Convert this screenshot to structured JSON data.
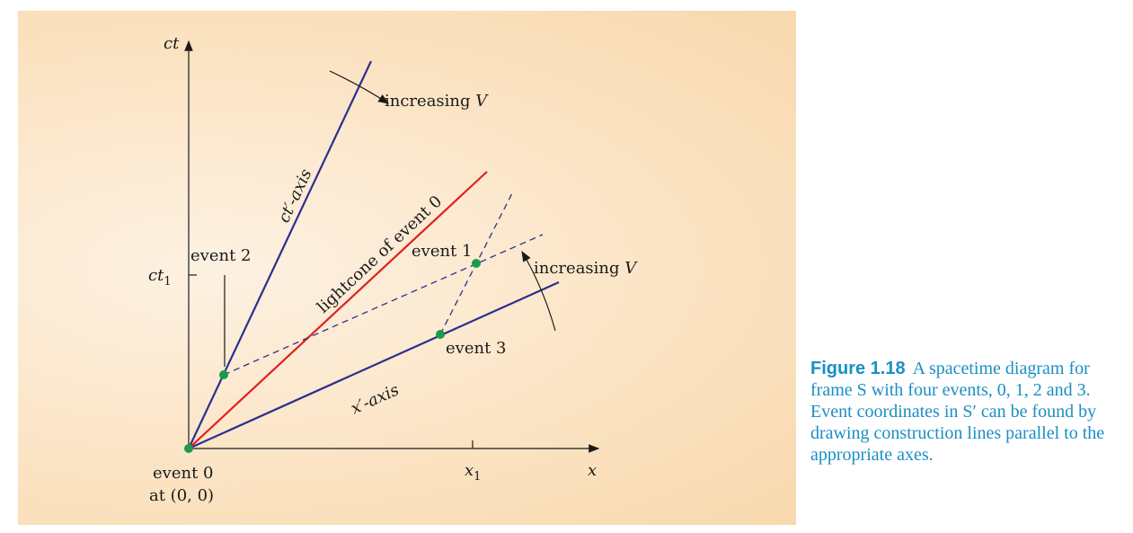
{
  "diagram": {
    "axis_ct": "ct",
    "axis_x": "x",
    "tick_ct1": "ct",
    "tick_ct1_sub": "1",
    "tick_x1": "x",
    "tick_x1_sub": "1",
    "ct_prime_axis_label": "ct′-axis",
    "x_prime_axis_label": "x′-axis",
    "lightcone_label": "lightcone of event 0",
    "increasing_v_text": "increasing ",
    "increasing_v_var": "V",
    "event0_line1": "event 0",
    "event0_line2": "at (0, 0)",
    "event1": "event 1",
    "event2": "event 2",
    "event3": "event 3",
    "colors": {
      "primed_axes": "#2b2f8f",
      "lightcone": "#e0211d",
      "event_dot": "#1d9a4a",
      "construction": "#2b2f8f"
    }
  },
  "caption": {
    "number": "Figure 1.18",
    "text": "A spacetime diagram for frame S with four events, 0, 1, 2 and 3. Event coordinates in S′ can be found by drawing construction lines parallel to the appropriate axes."
  }
}
